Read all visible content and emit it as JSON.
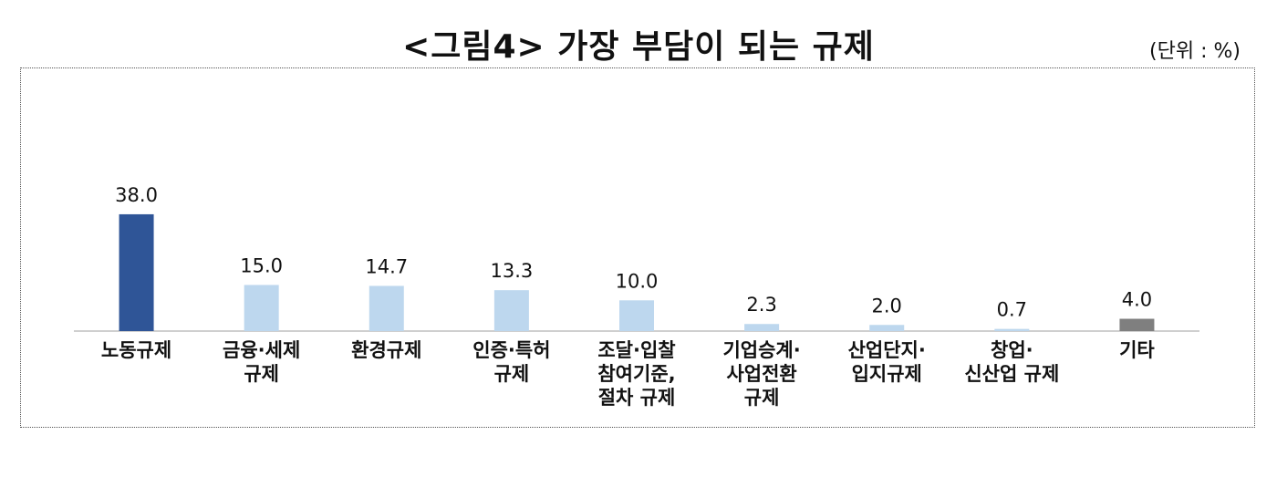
{
  "title": "<그림4> 가장 부담이 되는 규제",
  "unit_label": "(단위 : %)",
  "colors": {
    "highlight": "#2f5597",
    "normal": "#bdd7ee",
    "other": "#7f7f7f",
    "axis": "#bfbfbf"
  },
  "chart_data": {
    "type": "bar",
    "title": "<그림4> 가장 부담이 되는 규제",
    "xlabel": "",
    "ylabel": "",
    "ylim": [
      0,
      40
    ],
    "grid": false,
    "legend": "none",
    "categories": [
      "노동규제",
      "금융·세제 규제",
      "환경규제",
      "인증·특허 규제",
      "조달·입찰 참여기준, 절차 규제",
      "기업승계· 사업전환 규제",
      "산업단지· 입지규제",
      "창업· 신산업 규제",
      "기타"
    ],
    "category_lines": [
      [
        "노동규제"
      ],
      [
        "금융·세제",
        "규제"
      ],
      [
        "환경규제"
      ],
      [
        "인증·특허",
        "규제"
      ],
      [
        "조달·입찰",
        "참여기준,",
        "절차 규제"
      ],
      [
        "기업승계·",
        "사업전환",
        "규제"
      ],
      [
        "산업단지·",
        "입지규제"
      ],
      [
        "창업·",
        "신산업 규제"
      ],
      [
        "기타"
      ]
    ],
    "values": [
      38.0,
      15.0,
      14.7,
      13.3,
      10.0,
      2.3,
      2.0,
      0.7,
      4.0
    ],
    "value_labels": [
      "38.0",
      "15.0",
      "14.7",
      "13.3",
      "10.0",
      "2.3",
      "2.0",
      "0.7",
      "4.0"
    ],
    "bar_color_keys": [
      "highlight",
      "normal",
      "normal",
      "normal",
      "normal",
      "normal",
      "normal",
      "normal",
      "other"
    ]
  }
}
